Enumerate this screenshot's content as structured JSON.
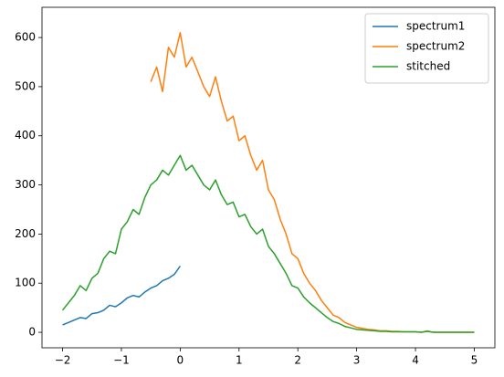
{
  "chart_data": {
    "type": "line",
    "series": [
      {
        "name": "spectrum1",
        "color": "#1f77b4",
        "x": [
          -2,
          -1.9,
          -1.8,
          -1.7,
          -1.6,
          -1.5,
          -1.4,
          -1.3,
          -1.2,
          -1.1,
          -1,
          -0.9,
          -0.8,
          -0.7,
          -0.6,
          -0.5,
          -0.4,
          -0.3,
          -0.2,
          -0.1,
          0
        ],
        "values": [
          15,
          20,
          25,
          30,
          28,
          38,
          40,
          45,
          55,
          52,
          60,
          70,
          75,
          72,
          82,
          90,
          95,
          105,
          110,
          118,
          135
        ]
      },
      {
        "name": "spectrum2",
        "color": "#ff7f0e",
        "x": [
          -0.5,
          -0.4,
          -0.3,
          -0.2,
          -0.1,
          0,
          0.1,
          0.2,
          0.3,
          0.4,
          0.5,
          0.6,
          0.7,
          0.8,
          0.9,
          1,
          1.1,
          1.2,
          1.3,
          1.4,
          1.5,
          1.6,
          1.7,
          1.8,
          1.9,
          2,
          2.1,
          2.2,
          2.3,
          2.4,
          2.5,
          2.6,
          2.7,
          2.8,
          2.9,
          3,
          3.1,
          3.2,
          3.3,
          3.4,
          3.5,
          3.6,
          3.7,
          3.8,
          3.9,
          4,
          4.1,
          4.2,
          4.3,
          4.4,
          4.5,
          4.6,
          4.7,
          4.8,
          4.9,
          5
        ],
        "values": [
          510,
          540,
          490,
          580,
          560,
          610,
          540,
          560,
          530,
          500,
          480,
          520,
          470,
          430,
          440,
          390,
          400,
          360,
          330,
          350,
          290,
          270,
          230,
          200,
          160,
          150,
          120,
          100,
          85,
          65,
          50,
          35,
          30,
          20,
          15,
          10,
          8,
          6,
          5,
          3,
          3,
          2,
          2,
          1,
          1,
          1,
          0,
          3,
          0,
          0,
          0,
          0,
          0,
          0,
          0,
          0
        ]
      },
      {
        "name": "stitched",
        "color": "#2ca02c",
        "x": [
          -2,
          -1.9,
          -1.8,
          -1.7,
          -1.6,
          -1.5,
          -1.4,
          -1.3,
          -1.2,
          -1.1,
          -1,
          -0.9,
          -0.8,
          -0.7,
          -0.6,
          -0.5,
          -0.4,
          -0.3,
          -0.2,
          -0.1,
          0,
          0.1,
          0.2,
          0.3,
          0.4,
          0.5,
          0.6,
          0.7,
          0.8,
          0.9,
          1,
          1.1,
          1.2,
          1.3,
          1.4,
          1.5,
          1.6,
          1.7,
          1.8,
          1.9,
          2,
          2.1,
          2.2,
          2.3,
          2.4,
          2.5,
          2.6,
          2.7,
          2.8,
          2.9,
          3,
          3.1,
          3.2,
          3.3,
          3.4,
          3.5,
          3.6,
          3.7,
          3.8,
          3.9,
          4,
          4.1,
          4.2,
          4.3,
          4.4,
          4.5,
          4.6,
          4.7,
          4.8,
          4.9,
          5
        ],
        "values": [
          45,
          60,
          75,
          95,
          85,
          110,
          120,
          150,
          165,
          160,
          210,
          225,
          250,
          240,
          275,
          300,
          310,
          330,
          320,
          340,
          360,
          330,
          340,
          320,
          300,
          290,
          310,
          280,
          260,
          265,
          235,
          240,
          215,
          200,
          210,
          175,
          160,
          140,
          120,
          95,
          90,
          72,
          60,
          50,
          40,
          30,
          22,
          18,
          12,
          9,
          6,
          5,
          4,
          3,
          2,
          2,
          1,
          1,
          1,
          1,
          1,
          0,
          2,
          0,
          0,
          0,
          0,
          0,
          0,
          0,
          0
        ]
      }
    ],
    "xlim": [
      -2.35,
      5.35
    ],
    "xticks": [
      {
        "value": -2,
        "label": "−2"
      },
      {
        "value": -1,
        "label": "−1"
      },
      0,
      1,
      2,
      3,
      4,
      5
    ],
    "ylim": [
      -31.5,
      661.5
    ],
    "yticks": [
      0,
      100,
      200,
      300,
      400,
      500,
      600
    ],
    "legend": "upper right"
  }
}
